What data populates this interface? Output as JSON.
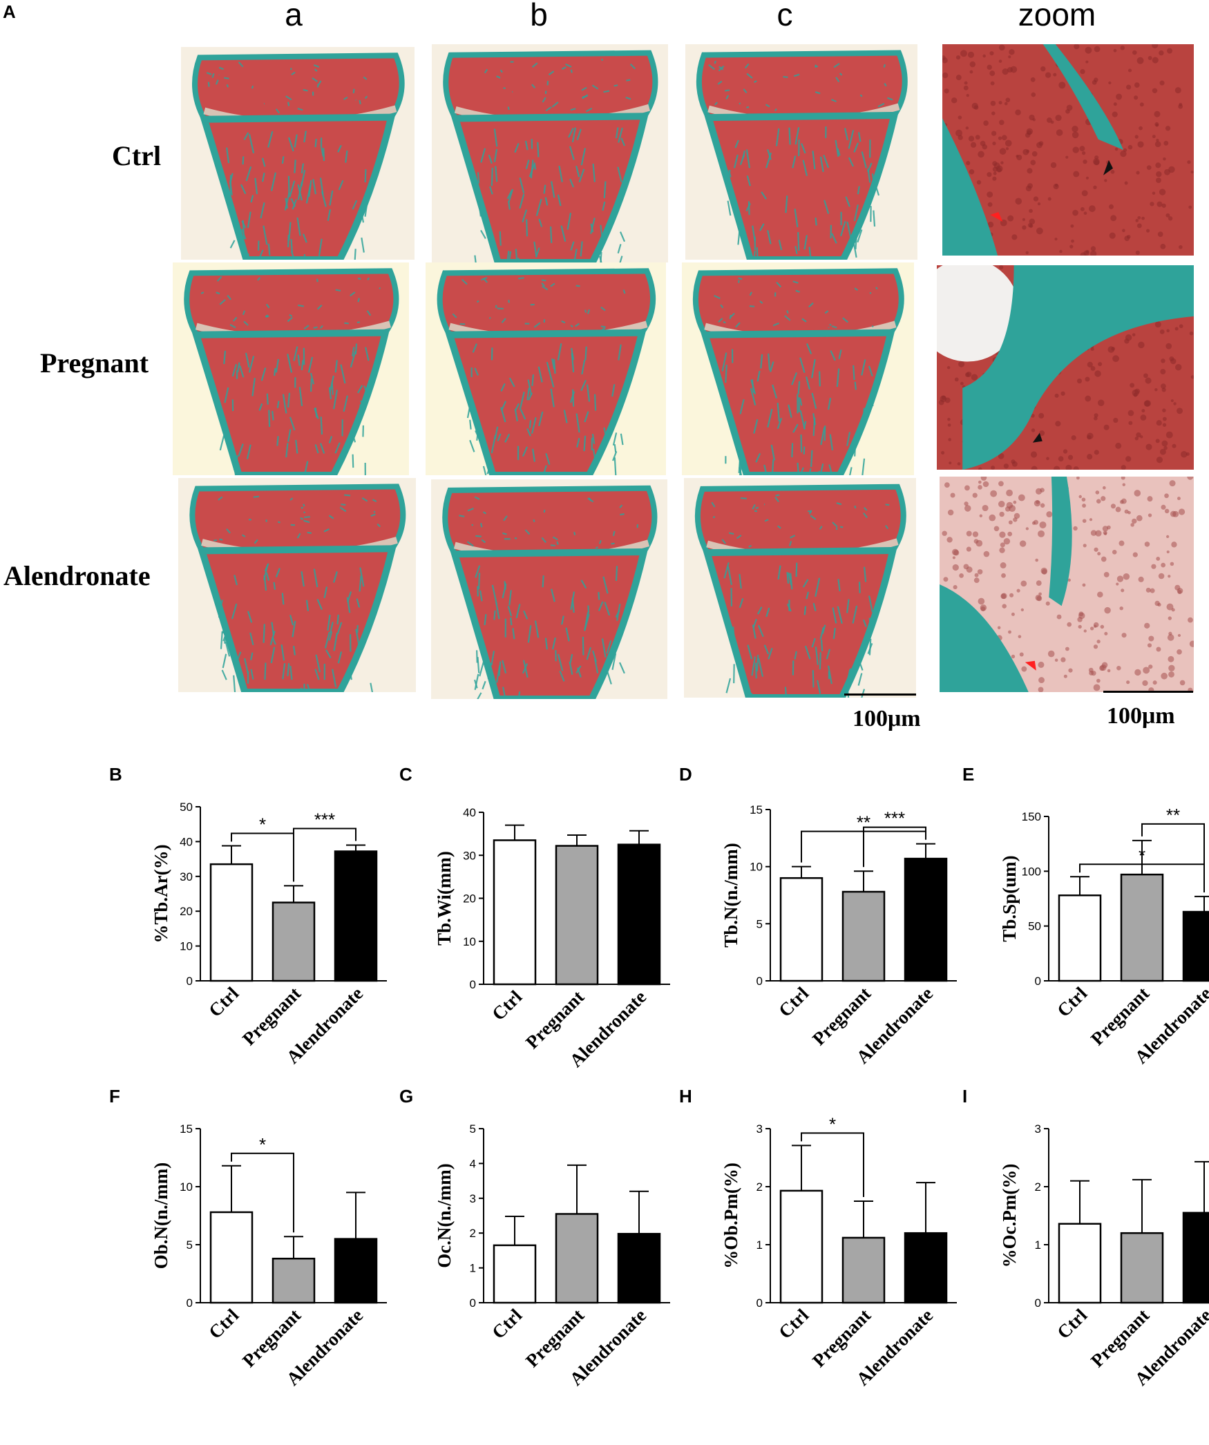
{
  "figure": {
    "panel_a_letter": "A",
    "columns": [
      "a",
      "b",
      "c",
      "zoom"
    ],
    "rows": [
      "Ctrl",
      "Pregnant",
      "Alendronate"
    ],
    "scale_bars": [
      "100μm",
      "100μm"
    ],
    "colors": {
      "bone": "#2fa39a",
      "marrow": "#c94b4b",
      "background": "#f6efe2",
      "zoom_bg": "#b9433f",
      "arrow_red": "#ff2020",
      "arrow_black": "#111111",
      "bar_ctrl": "#ffffff",
      "bar_pregnant": "#a6a6a6",
      "bar_alendronate": "#000000"
    }
  },
  "chart_data": [
    {
      "panel": "B",
      "type": "bar",
      "ylabel": "%Tb.Ar(%)",
      "categories": [
        "Ctrl",
        "Pregnant",
        "Alendronate"
      ],
      "values": [
        33.5,
        22.5,
        37.2
      ],
      "errors": [
        5.3,
        4.8,
        1.8
      ],
      "ylim": [
        0,
        50
      ],
      "yticks": [
        "0",
        "10",
        "20",
        "30",
        "40",
        "50"
      ],
      "significance": [
        {
          "pair": [
            0,
            1
          ],
          "label": "*"
        },
        {
          "pair": [
            1,
            2
          ],
          "label": "***"
        }
      ]
    },
    {
      "panel": "C",
      "type": "bar",
      "ylabel": "Tb.Wi(mm)",
      "categories": [
        "Ctrl",
        "Pregnant",
        "Alendronate"
      ],
      "values": [
        33.5,
        32.2,
        32.5
      ],
      "errors": [
        3.5,
        2.5,
        3.2
      ],
      "ylim": [
        0,
        40
      ],
      "yticks": [
        "0",
        "10",
        "20",
        "30",
        "40"
      ],
      "significance": []
    },
    {
      "panel": "D",
      "type": "bar",
      "ylabel": "Tb.N(n./mm)",
      "categories": [
        "Ctrl",
        "Pregnant",
        "Alendronate"
      ],
      "values": [
        9.0,
        7.8,
        10.7
      ],
      "errors": [
        1.0,
        1.8,
        1.3
      ],
      "ylim": [
        0,
        15
      ],
      "yticks": [
        "0",
        "5",
        "10",
        "15"
      ],
      "significance": [
        {
          "pair": [
            0,
            2
          ],
          "label": "**"
        },
        {
          "pair": [
            1,
            2
          ],
          "label": "***"
        }
      ]
    },
    {
      "panel": "E",
      "type": "bar",
      "ylabel": "Tb.Sp(um)",
      "categories": [
        "Ctrl",
        "Pregnant",
        "Alendronate"
      ],
      "values": [
        78,
        97,
        63
      ],
      "errors": [
        17,
        31,
        14
      ],
      "ylim": [
        0,
        150
      ],
      "yticks": [
        "0",
        "50",
        "100",
        "150"
      ],
      "significance": [
        {
          "pair": [
            0,
            2
          ],
          "label": "*"
        },
        {
          "pair": [
            1,
            2
          ],
          "label": "**"
        }
      ]
    },
    {
      "panel": "F",
      "type": "bar",
      "ylabel": "Ob.N(n./mm)",
      "categories": [
        "Ctrl",
        "Pregnant",
        "Alendronate"
      ],
      "values": [
        7.8,
        3.8,
        5.5
      ],
      "errors": [
        4.0,
        1.9,
        4.0
      ],
      "ylim": [
        0,
        15
      ],
      "yticks": [
        "0",
        "5",
        "10",
        "15"
      ],
      "significance": [
        {
          "pair": [
            0,
            1
          ],
          "label": "*"
        }
      ]
    },
    {
      "panel": "G",
      "type": "bar",
      "ylabel": "Oc.N(n./mm)",
      "categories": [
        "Ctrl",
        "Pregnant",
        "Alendronate"
      ],
      "values": [
        1.65,
        2.55,
        1.98
      ],
      "errors": [
        0.83,
        1.4,
        1.22
      ],
      "ylim": [
        0,
        5
      ],
      "yticks": [
        "0",
        "1",
        "2",
        "3",
        "4",
        "5"
      ],
      "significance": []
    },
    {
      "panel": "H",
      "type": "bar",
      "ylabel": "%Ob.Pm(%)",
      "categories": [
        "Ctrl",
        "Pregnant",
        "Alendronate"
      ],
      "values": [
        1.93,
        1.12,
        1.2
      ],
      "errors": [
        0.78,
        0.63,
        0.87
      ],
      "ylim": [
        0,
        3
      ],
      "yticks": [
        "0",
        "1",
        "2",
        "3"
      ],
      "significance": [
        {
          "pair": [
            0,
            1
          ],
          "label": "*"
        }
      ]
    },
    {
      "panel": "I",
      "type": "bar",
      "ylabel": "%Oc.Pm(%)",
      "categories": [
        "Ctrl",
        "Pregnant",
        "Alendronate"
      ],
      "values": [
        1.36,
        1.2,
        1.55
      ],
      "errors": [
        0.74,
        0.92,
        0.88
      ],
      "ylim": [
        0,
        3
      ],
      "yticks": [
        "0",
        "1",
        "2",
        "3"
      ],
      "significance": []
    }
  ]
}
